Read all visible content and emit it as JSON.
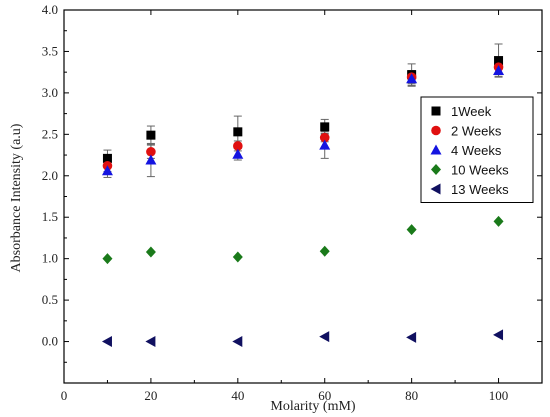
{
  "chart_data": {
    "type": "scatter",
    "xlabel": "Molarity (mM)",
    "ylabel": "Absorbance Intensity (a.u)",
    "xlim": [
      0,
      110
    ],
    "ylim": [
      -0.5,
      4.0
    ],
    "xticks": [
      "0",
      "20",
      "40",
      "60",
      "80",
      "100"
    ],
    "yticks": [
      "0.0",
      "0.5",
      "1.0",
      "1.5",
      "2.0",
      "2.5",
      "3.0",
      "3.5",
      "4.0"
    ],
    "legend_position": "right",
    "grid": false,
    "x": [
      10,
      20,
      40,
      60,
      80,
      100
    ],
    "series": [
      {
        "name": "1Week",
        "marker": "square",
        "color": "#000000",
        "values": [
          2.21,
          2.49,
          2.53,
          2.59,
          3.22,
          3.39
        ],
        "errors": [
          0.1,
          0.11,
          0.19,
          0.09,
          0.13,
          0.2
        ]
      },
      {
        "name": "2 Weeks",
        "marker": "circle",
        "color": "#e01010",
        "values": [
          2.12,
          2.29,
          2.36,
          2.46,
          3.19,
          3.31
        ],
        "errors": [
          0.07,
          0.08,
          0.06,
          0.05,
          0.08,
          0.08
        ]
      },
      {
        "name": "4 Weeks",
        "marker": "triangle-up",
        "color": "#1414e0",
        "values": [
          2.06,
          2.19,
          2.26,
          2.37,
          3.17,
          3.27
        ],
        "errors": [
          0.08,
          0.2,
          0.07,
          0.16,
          0.09,
          0.07
        ]
      },
      {
        "name": "10 Weeks",
        "marker": "diamond",
        "color": "#1a7a1a",
        "values": [
          1.0,
          1.08,
          1.02,
          1.09,
          1.35,
          1.45
        ],
        "errors": [
          0,
          0,
          0,
          0,
          0,
          0
        ]
      },
      {
        "name": "13 Weeks",
        "marker": "triangle-left",
        "color": "#101060",
        "values": [
          0.0,
          0.0,
          0.0,
          0.06,
          0.05,
          0.08
        ],
        "errors": [
          0,
          0,
          0,
          0,
          0,
          0
        ]
      }
    ]
  }
}
